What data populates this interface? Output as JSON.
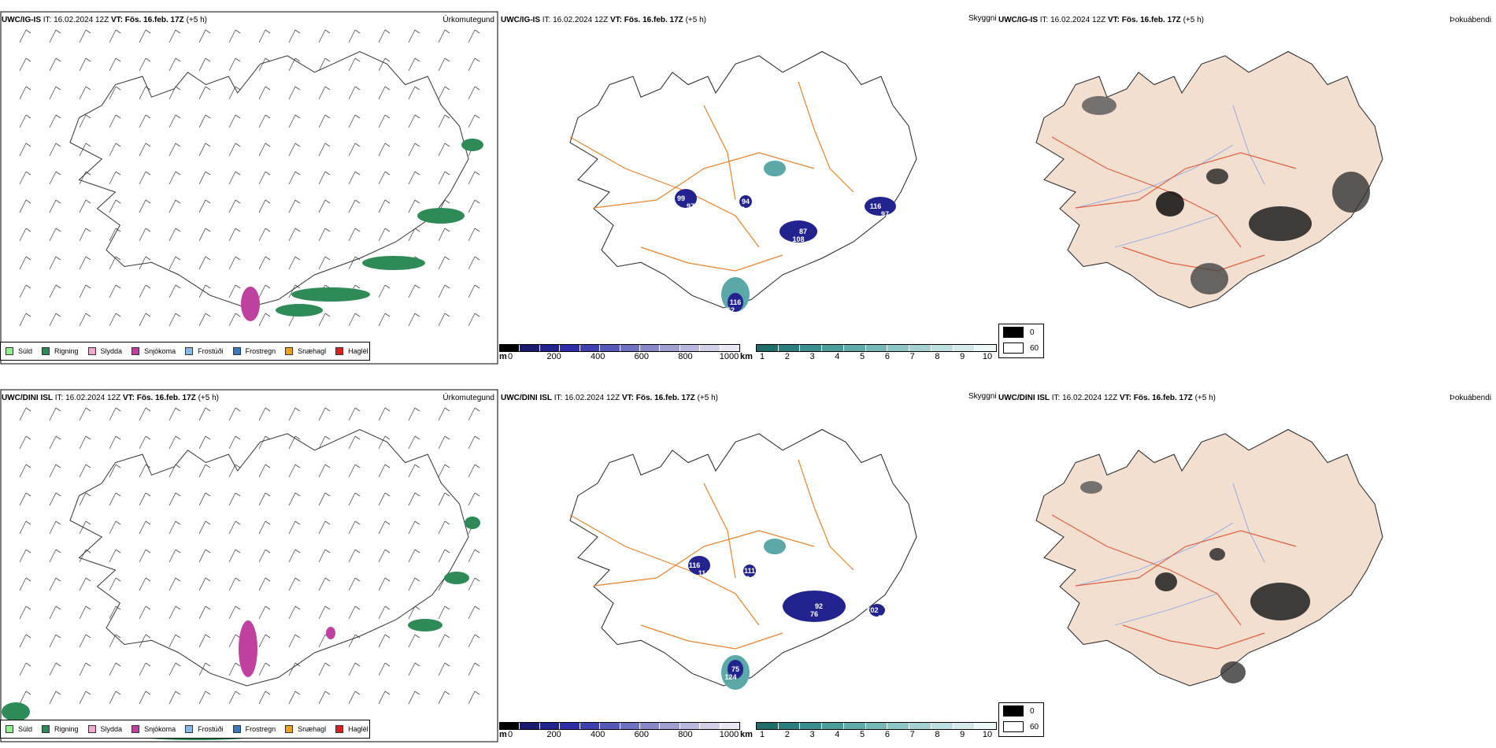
{
  "rows": [
    {
      "model": "UWC/IG-IS",
      "it_label": "IT:",
      "it_value": "16.02.2024 12Z",
      "vt_label": "VT:",
      "vt_value": "Fös. 16.feb. 17Z",
      "lead": "(+5 h)",
      "panel1_label": "Úrkomutegund",
      "panel2_label": "Skyggni",
      "panel3_label": "Þokuábendi",
      "cloud_values": [
        "99",
        "94",
        "87",
        "116",
        "116",
        "97",
        "52",
        "108",
        "97",
        "52",
        "97"
      ]
    },
    {
      "model": "UWC/DINI ISL",
      "it_label": "IT:",
      "it_value": "16.02.2024 12Z",
      "vt_label": "VT:",
      "vt_value": "Fös. 16.feb. 17Z",
      "lead": "(+5 h)",
      "panel1_label": "Úrkomutegund",
      "panel2_label": "Skyggni",
      "panel3_label": "Þokuábendi",
      "cloud_values": [
        "116",
        "111",
        "92",
        "102",
        "75",
        "114",
        "111",
        "76",
        "59",
        "124",
        "39",
        "99"
      ]
    }
  ],
  "precip_legend": [
    {
      "label": "Súld",
      "color": "#90ee90"
    },
    {
      "label": "Rigning",
      "color": "#2e8b57"
    },
    {
      "label": "Slydda",
      "color": "#f4a6d0"
    },
    {
      "label": "Snjókoma",
      "color": "#c040a0"
    },
    {
      "label": "Frostúði",
      "color": "#87b8e8"
    },
    {
      "label": "Frostregn",
      "color": "#3a78c0"
    },
    {
      "label": "Snæhagl",
      "color": "#f0a020"
    },
    {
      "label": "Haglél",
      "color": "#e02020"
    }
  ],
  "cloudbase_scale": {
    "unit": "m",
    "ticks": [
      "0",
      "200",
      "400",
      "600",
      "800",
      "1000"
    ],
    "colors": [
      "#000000",
      "#1a1a6e",
      "#23238f",
      "#2e2ea8",
      "#4040b0",
      "#5858b8",
      "#7070c0",
      "#8888c8",
      "#a0a0d0",
      "#b8b8dc",
      "#d0d0e8",
      "#e8e8f4"
    ]
  },
  "visibility_scale": {
    "unit": "km",
    "ticks": [
      "1",
      "2",
      "3",
      "4",
      "5",
      "6",
      "7",
      "8",
      "9",
      "10"
    ],
    "colors": [
      "#1e6e6e",
      "#2a7e7e",
      "#3a8e8e",
      "#4c9c9c",
      "#60aaaa",
      "#76b8b8",
      "#8cc6c6",
      "#a4d2d2",
      "#bcdede",
      "#d4eaea",
      "#ecf6f6"
    ]
  },
  "fog_legend": [
    {
      "label": "0",
      "color": "#000000"
    },
    {
      "label": "60",
      "color": "#ffffff"
    }
  ]
}
